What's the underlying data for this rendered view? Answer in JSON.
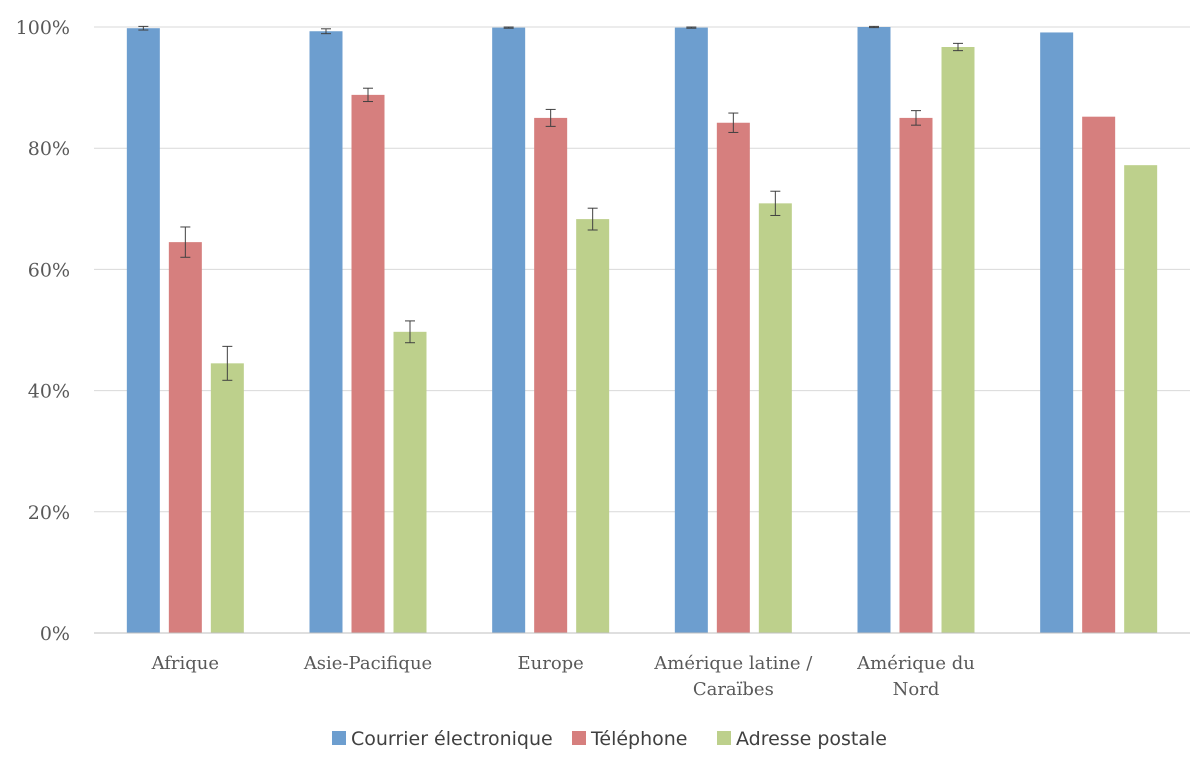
{
  "chart_data": {
    "type": "bar",
    "title": "",
    "xlabel": "",
    "ylabel": "",
    "ylim": [
      0,
      100
    ],
    "y_ticks": [
      0,
      20,
      40,
      60,
      80,
      100
    ],
    "y_tick_labels": [
      "0%",
      "20%",
      "40%",
      "60%",
      "80%",
      "100%"
    ],
    "grid": true,
    "legend_position": "bottom",
    "categories": [
      [
        "Afrique"
      ],
      [
        "Asie-Pacifique"
      ],
      [
        "Europe"
      ],
      [
        "Amérique latine /",
        "Caraïbes"
      ],
      [
        "Amérique du",
        "Nord"
      ],
      [
        ""
      ]
    ],
    "series": [
      {
        "name": "Courrier électronique",
        "color": "#6d9ecf",
        "values": [
          99.8,
          99.3,
          99.9,
          99.9,
          100,
          99.1
        ],
        "errors": [
          0.3,
          0.4,
          0.1,
          0.1,
          0.1,
          null
        ]
      },
      {
        "name": "Téléphone",
        "color": "#d67f7e",
        "values": [
          64.5,
          88.8,
          85.0,
          84.2,
          85.0,
          85.2
        ],
        "errors": [
          2.5,
          1.1,
          1.4,
          1.6,
          1.2,
          null
        ]
      },
      {
        "name": "Adresse postale",
        "color": "#bdd08c",
        "values": [
          44.5,
          49.7,
          68.3,
          70.9,
          96.7,
          77.2
        ],
        "errors": [
          2.8,
          1.8,
          1.8,
          2.0,
          0.6,
          null
        ]
      }
    ]
  }
}
